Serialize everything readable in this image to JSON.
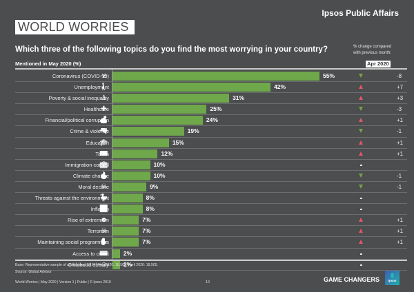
{
  "header": {
    "brand": "Ipsos Public Affairs",
    "title": "WORLD WORRIES",
    "question": "Which three of the following topics do you find the most worrying in your country?",
    "subheading": "Mentioned in May 2020 (%)",
    "change_note_line1": "% change compared",
    "change_note_line2": "with previous month:",
    "comparison_month": "Apr 2020"
  },
  "colors": {
    "background": "#4b4d4f",
    "bar": "#6fa84a",
    "increase": "#e05a63",
    "decrease": "#7aa246"
  },
  "chart_data": {
    "type": "bar",
    "orientation": "horizontal",
    "title": "Which three of the following topics do you find the most worrying in your country?",
    "xlabel": "Mentioned in May 2020 (%)",
    "ylabel": "",
    "xlim": [
      0,
      60
    ],
    "grid": false,
    "categories": [
      "Coronavirus (COVID-19)",
      "Unemployment",
      "Poverty & social inequality",
      "Healthcare",
      "Financial/political corruption",
      "Crime & violence",
      "Education",
      "Taxes",
      "Immigration control",
      "Climate change",
      "Moral decline",
      "Threats against the environment",
      "Inflation",
      "Rise of extremism",
      "Terrorism",
      "Maintaining social programmes",
      "Access to credit",
      "Childhood obesity"
    ],
    "values": [
      55,
      42,
      31,
      25,
      24,
      19,
      15,
      12,
      10,
      10,
      9,
      8,
      8,
      7,
      7,
      7,
      2,
      2
    ],
    "value_labels": [
      "55%",
      "42%",
      "31%",
      "25%",
      "24%",
      "19%",
      "15%",
      "12%",
      "10%",
      "10%",
      "9%",
      "8%",
      "8%",
      "7%",
      "7%",
      "7%",
      "2%",
      "2%"
    ],
    "change_vs_previous_month": {
      "label": "% change compared with previous month: Apr 2020",
      "values": [
        -8,
        7,
        3,
        -3,
        1,
        -1,
        1,
        1,
        0,
        -1,
        -1,
        0,
        0,
        1,
        1,
        1,
        0,
        0
      ],
      "display": [
        "-8",
        "+7",
        "+3",
        "-3",
        "+1",
        "-1",
        "+1",
        "+1",
        "-",
        "-1",
        "-1",
        "-",
        "-",
        "+1",
        "+1",
        "+1",
        "-",
        "-"
      ],
      "direction": [
        "down",
        "up",
        "up",
        "down",
        "up",
        "down",
        "up",
        "up",
        "none",
        "down",
        "down",
        "none",
        "none",
        "up",
        "up",
        "up",
        "none",
        "none"
      ]
    },
    "icons": [
      "biohazard-icon",
      "unemployed-person-icon",
      "person-icon",
      "nurse-cap-icon",
      "money-bag-icon",
      "gun-icon",
      "graduation-cap-icon",
      "banknote-icon",
      "suitcase-icon",
      "globe-fire-icon",
      "moral-decline-icon",
      "polluted-duck-icon",
      "rising-chart-icon",
      "balaclava-icon",
      "skull-crossbones-icon",
      "hand-person-icon",
      "credit-card-icon",
      "obese-child-icon"
    ]
  },
  "footer": {
    "base_note": "Base: Representative sample of adults aged 18-74. May 2020: 18,505; April 2020: 18,505.",
    "source": "Source: Global Advisor",
    "meta": "World Worries | May 2020 | Version 1 | Public | © Ipsos 2019",
    "page_number": "10",
    "tagline": "GAME CHANGERS",
    "logo_text": "Ipsos"
  }
}
